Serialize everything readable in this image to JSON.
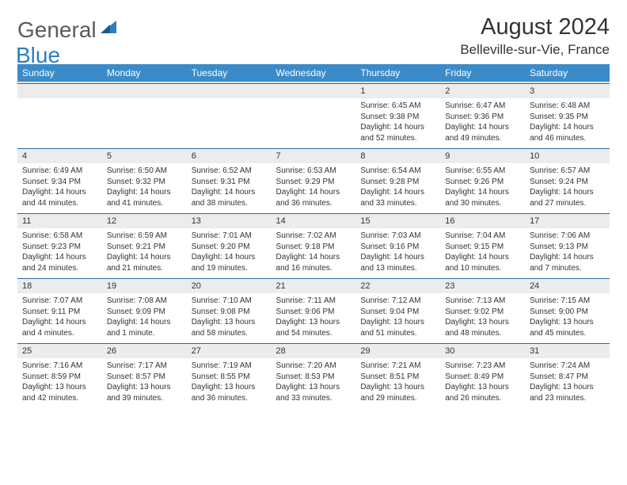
{
  "logo": {
    "part1": "General",
    "part2": "Blue"
  },
  "title": "August 2024",
  "location": "Belleville-sur-Vie, France",
  "weekday_bg": "#3b8bc9",
  "weekday_fg": "#ffffff",
  "daynum_bg": "#ececec",
  "border_color": "#2b6aa0",
  "weekdays": [
    "Sunday",
    "Monday",
    "Tuesday",
    "Wednesday",
    "Thursday",
    "Friday",
    "Saturday"
  ],
  "weeks": [
    [
      null,
      null,
      null,
      null,
      {
        "n": "1",
        "sr": "Sunrise: 6:45 AM",
        "ss": "Sunset: 9:38 PM",
        "dl": "Daylight: 14 hours and 52 minutes."
      },
      {
        "n": "2",
        "sr": "Sunrise: 6:47 AM",
        "ss": "Sunset: 9:36 PM",
        "dl": "Daylight: 14 hours and 49 minutes."
      },
      {
        "n": "3",
        "sr": "Sunrise: 6:48 AM",
        "ss": "Sunset: 9:35 PM",
        "dl": "Daylight: 14 hours and 46 minutes."
      }
    ],
    [
      {
        "n": "4",
        "sr": "Sunrise: 6:49 AM",
        "ss": "Sunset: 9:34 PM",
        "dl": "Daylight: 14 hours and 44 minutes."
      },
      {
        "n": "5",
        "sr": "Sunrise: 6:50 AM",
        "ss": "Sunset: 9:32 PM",
        "dl": "Daylight: 14 hours and 41 minutes."
      },
      {
        "n": "6",
        "sr": "Sunrise: 6:52 AM",
        "ss": "Sunset: 9:31 PM",
        "dl": "Daylight: 14 hours and 38 minutes."
      },
      {
        "n": "7",
        "sr": "Sunrise: 6:53 AM",
        "ss": "Sunset: 9:29 PM",
        "dl": "Daylight: 14 hours and 36 minutes."
      },
      {
        "n": "8",
        "sr": "Sunrise: 6:54 AM",
        "ss": "Sunset: 9:28 PM",
        "dl": "Daylight: 14 hours and 33 minutes."
      },
      {
        "n": "9",
        "sr": "Sunrise: 6:55 AM",
        "ss": "Sunset: 9:26 PM",
        "dl": "Daylight: 14 hours and 30 minutes."
      },
      {
        "n": "10",
        "sr": "Sunrise: 6:57 AM",
        "ss": "Sunset: 9:24 PM",
        "dl": "Daylight: 14 hours and 27 minutes."
      }
    ],
    [
      {
        "n": "11",
        "sr": "Sunrise: 6:58 AM",
        "ss": "Sunset: 9:23 PM",
        "dl": "Daylight: 14 hours and 24 minutes."
      },
      {
        "n": "12",
        "sr": "Sunrise: 6:59 AM",
        "ss": "Sunset: 9:21 PM",
        "dl": "Daylight: 14 hours and 21 minutes."
      },
      {
        "n": "13",
        "sr": "Sunrise: 7:01 AM",
        "ss": "Sunset: 9:20 PM",
        "dl": "Daylight: 14 hours and 19 minutes."
      },
      {
        "n": "14",
        "sr": "Sunrise: 7:02 AM",
        "ss": "Sunset: 9:18 PM",
        "dl": "Daylight: 14 hours and 16 minutes."
      },
      {
        "n": "15",
        "sr": "Sunrise: 7:03 AM",
        "ss": "Sunset: 9:16 PM",
        "dl": "Daylight: 14 hours and 13 minutes."
      },
      {
        "n": "16",
        "sr": "Sunrise: 7:04 AM",
        "ss": "Sunset: 9:15 PM",
        "dl": "Daylight: 14 hours and 10 minutes."
      },
      {
        "n": "17",
        "sr": "Sunrise: 7:06 AM",
        "ss": "Sunset: 9:13 PM",
        "dl": "Daylight: 14 hours and 7 minutes."
      }
    ],
    [
      {
        "n": "18",
        "sr": "Sunrise: 7:07 AM",
        "ss": "Sunset: 9:11 PM",
        "dl": "Daylight: 14 hours and 4 minutes."
      },
      {
        "n": "19",
        "sr": "Sunrise: 7:08 AM",
        "ss": "Sunset: 9:09 PM",
        "dl": "Daylight: 14 hours and 1 minute."
      },
      {
        "n": "20",
        "sr": "Sunrise: 7:10 AM",
        "ss": "Sunset: 9:08 PM",
        "dl": "Daylight: 13 hours and 58 minutes."
      },
      {
        "n": "21",
        "sr": "Sunrise: 7:11 AM",
        "ss": "Sunset: 9:06 PM",
        "dl": "Daylight: 13 hours and 54 minutes."
      },
      {
        "n": "22",
        "sr": "Sunrise: 7:12 AM",
        "ss": "Sunset: 9:04 PM",
        "dl": "Daylight: 13 hours and 51 minutes."
      },
      {
        "n": "23",
        "sr": "Sunrise: 7:13 AM",
        "ss": "Sunset: 9:02 PM",
        "dl": "Daylight: 13 hours and 48 minutes."
      },
      {
        "n": "24",
        "sr": "Sunrise: 7:15 AM",
        "ss": "Sunset: 9:00 PM",
        "dl": "Daylight: 13 hours and 45 minutes."
      }
    ],
    [
      {
        "n": "25",
        "sr": "Sunrise: 7:16 AM",
        "ss": "Sunset: 8:59 PM",
        "dl": "Daylight: 13 hours and 42 minutes."
      },
      {
        "n": "26",
        "sr": "Sunrise: 7:17 AM",
        "ss": "Sunset: 8:57 PM",
        "dl": "Daylight: 13 hours and 39 minutes."
      },
      {
        "n": "27",
        "sr": "Sunrise: 7:19 AM",
        "ss": "Sunset: 8:55 PM",
        "dl": "Daylight: 13 hours and 36 minutes."
      },
      {
        "n": "28",
        "sr": "Sunrise: 7:20 AM",
        "ss": "Sunset: 8:53 PM",
        "dl": "Daylight: 13 hours and 33 minutes."
      },
      {
        "n": "29",
        "sr": "Sunrise: 7:21 AM",
        "ss": "Sunset: 8:51 PM",
        "dl": "Daylight: 13 hours and 29 minutes."
      },
      {
        "n": "30",
        "sr": "Sunrise: 7:23 AM",
        "ss": "Sunset: 8:49 PM",
        "dl": "Daylight: 13 hours and 26 minutes."
      },
      {
        "n": "31",
        "sr": "Sunrise: 7:24 AM",
        "ss": "Sunset: 8:47 PM",
        "dl": "Daylight: 13 hours and 23 minutes."
      }
    ]
  ]
}
